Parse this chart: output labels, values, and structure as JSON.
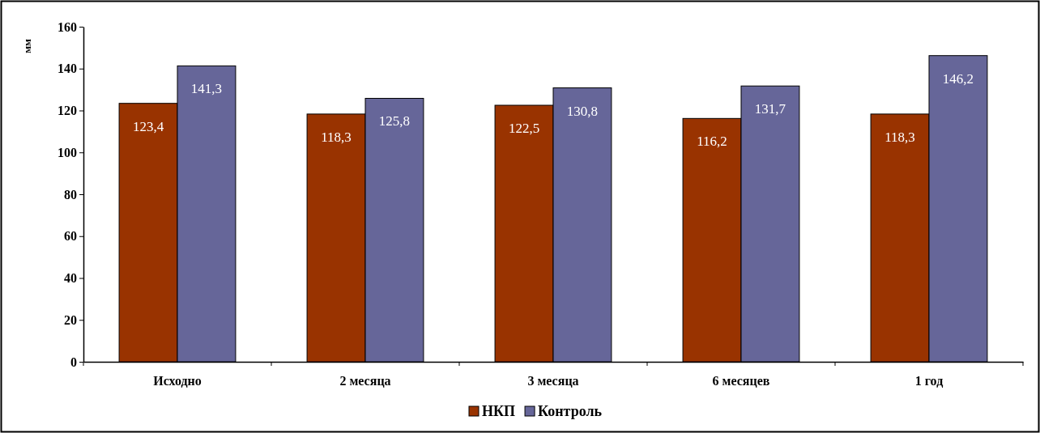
{
  "chart_data": {
    "type": "bar",
    "ylabel": "мм",
    "categories": [
      "Исходно",
      "2 месяца",
      "3 месяца",
      "6 месяцев",
      "1 год"
    ],
    "series": [
      {
        "name": "НКП",
        "color": "#993300",
        "values": [
          123.4,
          118.3,
          122.5,
          116.2,
          118.3
        ],
        "value_labels": [
          "123,4",
          "118,3",
          "122,5",
          "116,2",
          "118,3"
        ]
      },
      {
        "name": "Контроль",
        "color": "#666699",
        "values": [
          141.3,
          125.8,
          130.8,
          131.7,
          146.2
        ],
        "value_labels": [
          "141,3",
          "125,8",
          "130,8",
          "131,7",
          "146,2"
        ]
      }
    ],
    "ylim": [
      0,
      160
    ],
    "yticks": [
      0,
      20,
      40,
      60,
      80,
      100,
      120,
      140,
      160
    ],
    "grid": false,
    "legend": "bottom"
  }
}
